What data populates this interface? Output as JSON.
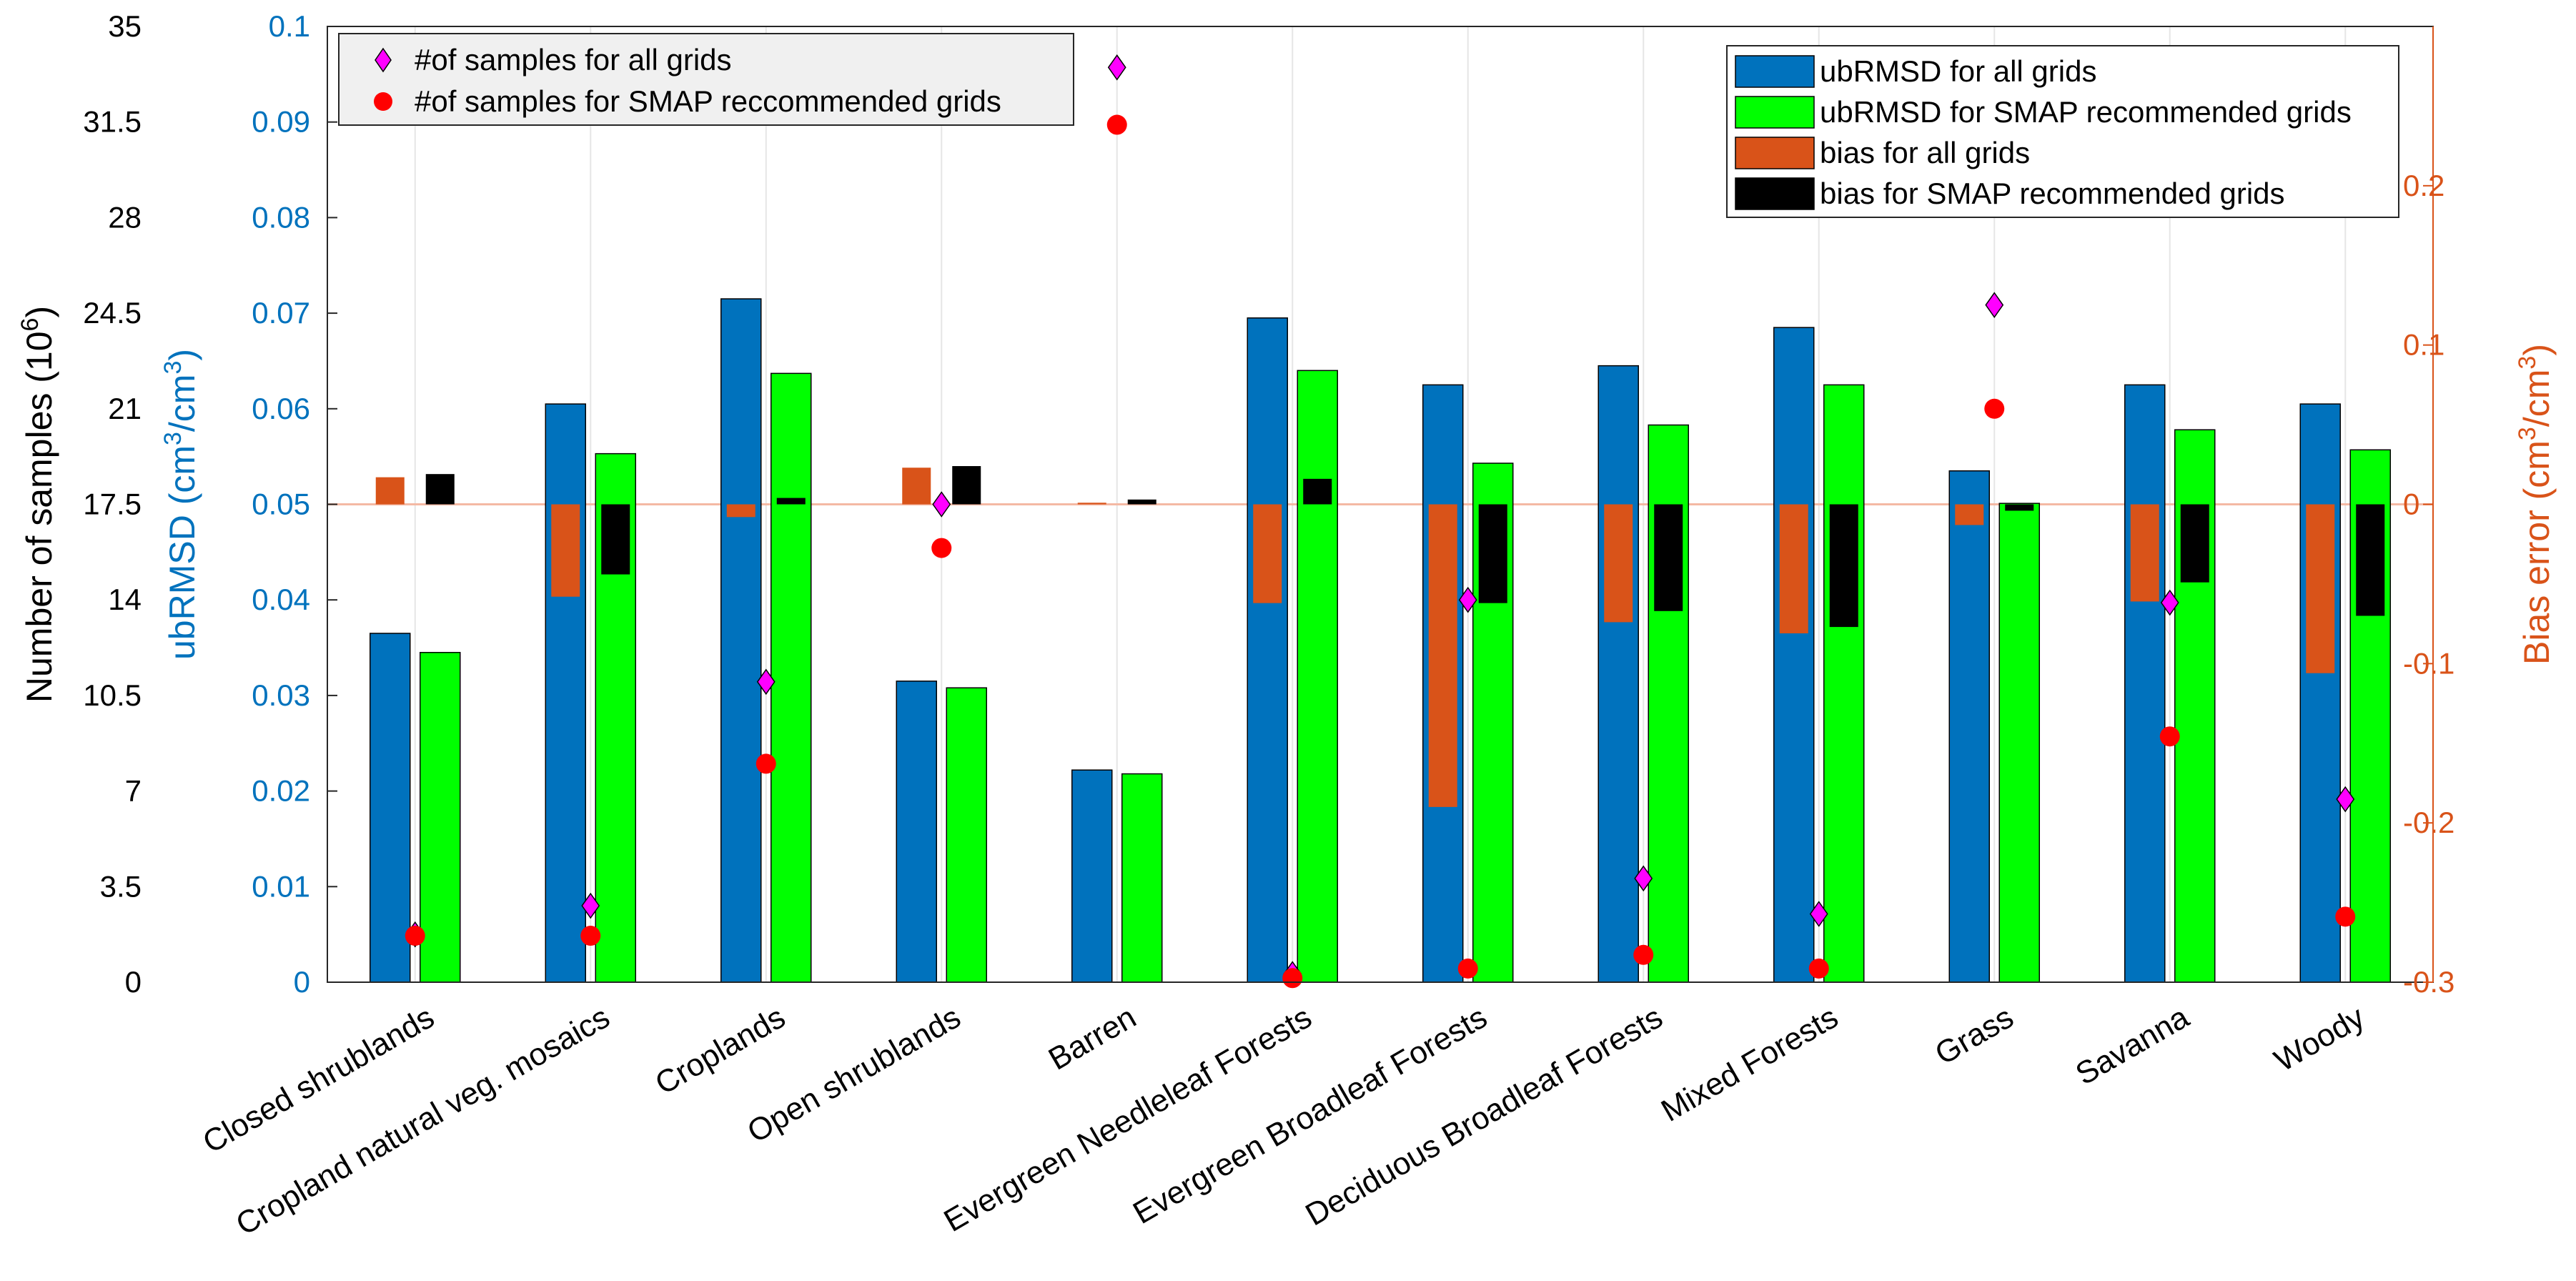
{
  "chart_data": {
    "type": "bar",
    "categories": [
      "Closed shrublands",
      "Cropland natural veg. mosaics",
      "Croplands",
      "Open shrublands",
      "Barren",
      "Evergreen Needleleaf Forests",
      "Evergreen Broadleaf Forests",
      "Deciduous Broadleaf Forests",
      "Mixed Forests",
      "Grass",
      "Savanna",
      "Woody"
    ],
    "axes": {
      "samples": {
        "label_main": "Number of samples (10",
        "label_sup": "6",
        "label_end": ")",
        "range": [
          0,
          35
        ],
        "ticks": [
          0,
          3.5,
          7,
          10.5,
          14,
          17.5,
          21,
          24.5,
          28,
          31.5,
          35
        ],
        "tick_labels": [
          "0",
          "3.5",
          "7",
          "10.5",
          "14",
          "17.5",
          "21",
          "24.5",
          "28",
          "31.5",
          "35"
        ],
        "color": "#000000"
      },
      "ubrmsd": {
        "label_main": "ubRMSD (cm",
        "label_sup1": "3",
        "label_mid": "/cm",
        "label_sup2": "3",
        "label_end": ")",
        "range": [
          0,
          0.1
        ],
        "ticks": [
          0,
          0.01,
          0.02,
          0.03,
          0.04,
          0.05,
          0.06,
          0.07,
          0.08,
          0.09,
          0.1
        ],
        "tick_labels": [
          "0",
          "0.01",
          "0.02",
          "0.03",
          "0.04",
          "0.05",
          "0.06",
          "0.07",
          "0.08",
          "0.09",
          "0.1"
        ],
        "color": "#0072BD"
      },
      "bias": {
        "label_main": "Bias error (cm",
        "label_sup1": "3",
        "label_mid": "/cm",
        "label_sup2": "3",
        "label_end": ")",
        "range": [
          -0.3,
          0.3
        ],
        "ticks": [
          -0.3,
          -0.2,
          -0.1,
          0,
          0.1,
          0.2
        ],
        "tick_labels": [
          "-0.3",
          "-0.2",
          "-0.1",
          "0",
          "0.1",
          "0.2"
        ],
        "color": "#D95319"
      }
    },
    "series": [
      {
        "name": "ubRMSD for all grids",
        "axis": "ubrmsd",
        "kind": "bar",
        "color": "#0072BD",
        "values": [
          0.0365,
          0.0605,
          0.0715,
          0.0315,
          0.0222,
          0.0695,
          0.0625,
          0.0645,
          0.0685,
          0.0535,
          0.0625,
          0.0605
        ]
      },
      {
        "name": "ubRMSD for SMAP recommended grids",
        "axis": "ubrmsd",
        "kind": "bar",
        "color": "#00FF00",
        "values": [
          0.0345,
          0.0553,
          0.0637,
          0.0308,
          0.0218,
          0.064,
          0.0543,
          0.0583,
          0.0625,
          0.0501,
          0.0578,
          0.0557
        ]
      },
      {
        "name": "bias for all grids",
        "axis": "bias",
        "kind": "bar",
        "color": "#D95319",
        "values": [
          0.017,
          -0.058,
          -0.008,
          0.023,
          0.001,
          -0.062,
          -0.19,
          -0.074,
          -0.081,
          -0.013,
          -0.061,
          -0.106
        ]
      },
      {
        "name": "bias for SMAP recommended grids",
        "axis": "bias",
        "kind": "bar",
        "color": "#000000",
        "values": [
          0.019,
          -0.044,
          0.004,
          0.024,
          0.003,
          0.016,
          -0.062,
          -0.067,
          -0.077,
          -0.004,
          -0.049,
          -0.07
        ]
      },
      {
        "name": "#of samples for all grids",
        "axis": "samples",
        "kind": "marker",
        "marker": "diamond",
        "color": "#FF00FF",
        "values": [
          1.75,
          2.8,
          11.0,
          17.5,
          33.5,
          0.3,
          14.0,
          3.8,
          2.5,
          24.8,
          13.9,
          6.7
        ]
      },
      {
        "name": "#of samples for SMAP reccommended grids",
        "axis": "samples",
        "kind": "marker",
        "marker": "circle",
        "color": "#FF0000",
        "values": [
          1.7,
          1.7,
          8.0,
          15.9,
          31.4,
          0.15,
          0.5,
          1.0,
          0.5,
          21.0,
          9.0,
          2.4
        ]
      }
    ],
    "legend_markers": {
      "position": "top-left",
      "entries": [
        "#of samples for all grids",
        "#of samples for SMAP reccommended grids"
      ]
    },
    "legend_bars": {
      "position": "top-right",
      "entries": [
        "ubRMSD for all grids",
        "ubRMSD for SMAP recommended grids",
        "bias for all grids",
        "bias for SMAP recommended grids"
      ]
    },
    "zero_bias_line_color": "#F4B9A4",
    "grid": "vertical"
  }
}
